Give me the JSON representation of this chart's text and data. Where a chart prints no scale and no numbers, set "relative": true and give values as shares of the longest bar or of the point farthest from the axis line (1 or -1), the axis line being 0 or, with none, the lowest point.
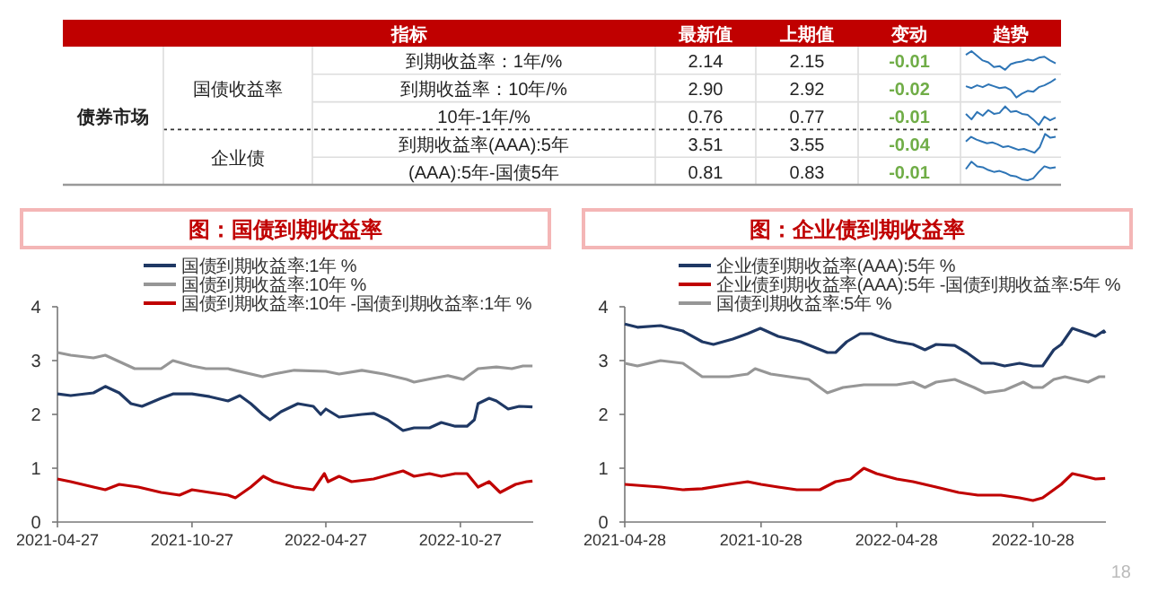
{
  "chart_data": [
    {
      "type": "other",
      "annotations": [
        "指标",
        "趋势",
        "债券市场",
        "国债收益率",
        "企业债"
      ],
      "categories": [
        "到期收益率：1年/%",
        "到期收益率：10年/%",
        "10年-1年/%",
        "到期收益率(AAA):5年",
        "(AAA):5年-国债5年"
      ],
      "series": [
        {
          "name": "最新值",
          "values": [
            2.14,
            2.9,
            0.76,
            3.51,
            0.81
          ],
          "value_labels": [
            "2.14",
            "2.90",
            "0.76",
            "3.51",
            "0.81"
          ]
        },
        {
          "name": "上期值",
          "values": [
            2.15,
            2.92,
            0.77,
            3.55,
            0.83
          ],
          "value_labels": [
            "2.15",
            "2.92",
            "0.77",
            "3.55",
            "0.83"
          ]
        },
        {
          "name": "变动",
          "values": [
            -0.01,
            -0.02,
            -0.01,
            -0.04,
            -0.01
          ],
          "value_labels": [
            "-0.01",
            "-0.02",
            "-0.01",
            "-0.04",
            "-0.01"
          ]
        }
      ]
    },
    {
      "type": "line",
      "relative": true,
      "categories": [
        null,
        null,
        null,
        null,
        null,
        null,
        null,
        null,
        null,
        null,
        null,
        null,
        null,
        null,
        null,
        null,
        null
      ],
      "series": [
        {
          "color": "#2e75b6",
          "values": [
            0.8,
            1,
            0.75,
            0.5,
            0.4,
            0.15,
            0.2,
            0,
            0.3,
            0.4,
            0.45,
            0.55,
            0.5,
            0.65,
            0.7,
            0.5,
            0.35
          ]
        }
      ]
    },
    {
      "type": "line",
      "relative": true,
      "categories": [
        null,
        null,
        null,
        null,
        null,
        null,
        null,
        null,
        null,
        null,
        null,
        null,
        null,
        null,
        null,
        null,
        null
      ],
      "series": [
        {
          "color": "#2e75b6",
          "values": [
            0.6,
            0.5,
            0.65,
            0.55,
            0.7,
            0.6,
            0.5,
            0.55,
            0.4,
            0,
            0.2,
            0.35,
            0.3,
            0.55,
            0.65,
            0.8,
            1
          ]
        }
      ]
    },
    {
      "type": "line",
      "relative": true,
      "categories": [
        null,
        null,
        null,
        null,
        null,
        null,
        null,
        null,
        null,
        null,
        null,
        null,
        null,
        null,
        null,
        null,
        null
      ],
      "series": [
        {
          "color": "#2e75b6",
          "values": [
            0.6,
            0.3,
            0.7,
            0.5,
            0.8,
            0.6,
            0.65,
            1,
            0.7,
            0.75,
            0.6,
            0.55,
            0.3,
            0,
            0.45,
            0.25,
            0.4
          ]
        }
      ]
    },
    {
      "type": "line",
      "relative": true,
      "categories": [
        null,
        null,
        null,
        null,
        null,
        null,
        null,
        null,
        null,
        null,
        null,
        null,
        null,
        null,
        null,
        null,
        null,
        null
      ],
      "series": [
        {
          "color": "#2e75b6",
          "values": [
            0.6,
            0.85,
            0.7,
            0.6,
            0.5,
            0.55,
            0.45,
            0.3,
            0.35,
            0.25,
            0.15,
            0.2,
            0.1,
            0,
            0.3,
            1,
            0.8,
            0.85
          ]
        }
      ]
    },
    {
      "type": "line",
      "relative": true,
      "categories": [
        null,
        null,
        null,
        null,
        null,
        null,
        null,
        null,
        null,
        null,
        null,
        null,
        null,
        null,
        null,
        null,
        null
      ],
      "series": [
        {
          "color": "#2e75b6",
          "values": [
            0.6,
            1,
            0.75,
            0.7,
            0.55,
            0.45,
            0.5,
            0.4,
            0.25,
            0.2,
            0.05,
            0,
            0.1,
            0.45,
            0.75,
            0.65,
            0.7
          ]
        }
      ]
    },
    {
      "type": "line",
      "title": "图：国债到期收益率",
      "legend": "top",
      "xlim": [
        "2021-04-27",
        "2023-02-03"
      ],
      "xticks": [
        "2021-04-27",
        "2021-10-27",
        "2022-04-27",
        "2022-10-27"
      ],
      "ylim": [
        0,
        4
      ],
      "yticks": [
        0,
        1,
        2,
        3,
        4
      ],
      "series": [
        {
          "name": "国债到期收益率:1年 %",
          "color": "#1f3864",
          "x": [
            "2021-04-27",
            "2021-05-15",
            "2021-06-15",
            "2021-07-01",
            "2021-07-20",
            "2021-08-05",
            "2021-08-20",
            "2021-09-15",
            "2021-10-01",
            "2021-10-27",
            "2021-11-20",
            "2021-12-15",
            "2021-12-31",
            "2022-01-15",
            "2022-01-31",
            "2022-02-10",
            "2022-02-25",
            "2022-03-20",
            "2022-04-10",
            "2022-04-20",
            "2022-04-27",
            "2022-05-15",
            "2022-06-15",
            "2022-07-01",
            "2022-07-20",
            "2022-08-10",
            "2022-08-25",
            "2022-09-15",
            "2022-10-01",
            "2022-10-20",
            "2022-11-05",
            "2022-11-15",
            "2022-11-20",
            "2022-12-05",
            "2022-12-15",
            "2022-12-31",
            "2023-01-15",
            "2023-02-02"
          ],
          "values": [
            2.38,
            2.35,
            2.4,
            2.52,
            2.4,
            2.2,
            2.15,
            2.3,
            2.38,
            2.38,
            2.33,
            2.25,
            2.35,
            2.2,
            2.0,
            1.9,
            2.05,
            2.2,
            2.15,
            2.0,
            2.1,
            1.95,
            2.0,
            2.02,
            1.9,
            1.7,
            1.75,
            1.75,
            1.85,
            1.78,
            1.78,
            1.9,
            2.2,
            2.3,
            2.25,
            2.1,
            2.15,
            2.14
          ]
        },
        {
          "name": "国债到期收益率:10年 %",
          "color": "#969696",
          "x": [
            "2021-04-27",
            "2021-05-15",
            "2021-06-15",
            "2021-07-01",
            "2021-08-10",
            "2021-09-15",
            "2021-10-01",
            "2021-10-27",
            "2021-11-15",
            "2021-12-15",
            "2022-01-31",
            "2022-02-15",
            "2022-03-15",
            "2022-04-27",
            "2022-05-15",
            "2022-06-15",
            "2022-07-15",
            "2022-08-15",
            "2022-08-25",
            "2022-09-20",
            "2022-10-10",
            "2022-10-31",
            "2022-11-20",
            "2022-12-15",
            "2023-01-05",
            "2023-01-20",
            "2023-02-02"
          ],
          "values": [
            3.15,
            3.1,
            3.05,
            3.1,
            2.85,
            2.85,
            3.0,
            2.9,
            2.85,
            2.85,
            2.7,
            2.75,
            2.82,
            2.8,
            2.75,
            2.82,
            2.75,
            2.65,
            2.6,
            2.67,
            2.72,
            2.65,
            2.85,
            2.88,
            2.85,
            2.9,
            2.9
          ]
        },
        {
          "name": "国债到期收益率:10年 -国债到期收益率:1年 %",
          "color": "#c00000",
          "x": [
            "2021-04-27",
            "2021-05-15",
            "2021-06-15",
            "2021-07-01",
            "2021-07-20",
            "2021-08-15",
            "2021-09-15",
            "2021-10-10",
            "2021-10-27",
            "2021-11-20",
            "2021-12-15",
            "2021-12-25",
            "2022-01-15",
            "2022-02-01",
            "2022-02-15",
            "2022-03-15",
            "2022-04-10",
            "2022-04-25",
            "2022-04-30",
            "2022-05-15",
            "2022-06-01",
            "2022-07-01",
            "2022-08-10",
            "2022-08-25",
            "2022-09-15",
            "2022-10-01",
            "2022-10-20",
            "2022-11-05",
            "2022-11-20",
            "2022-12-05",
            "2022-12-20",
            "2023-01-10",
            "2023-01-25",
            "2023-02-02"
          ],
          "values": [
            0.8,
            0.75,
            0.65,
            0.6,
            0.7,
            0.65,
            0.55,
            0.5,
            0.6,
            0.55,
            0.5,
            0.45,
            0.65,
            0.85,
            0.75,
            0.65,
            0.6,
            0.9,
            0.75,
            0.85,
            0.75,
            0.8,
            0.95,
            0.85,
            0.9,
            0.85,
            0.9,
            0.9,
            0.65,
            0.75,
            0.55,
            0.7,
            0.75,
            0.76
          ]
        }
      ]
    },
    {
      "type": "line",
      "title": "图：企业债到期收益率",
      "legend": "top",
      "xlim": [
        "2021-04-28",
        "2023-02-03"
      ],
      "xticks": [
        "2021-04-28",
        "2021-10-28",
        "2022-04-28",
        "2022-10-28"
      ],
      "ylim": [
        0,
        4
      ],
      "yticks": [
        0,
        1,
        2,
        3,
        4
      ],
      "annotations": [
        "18"
      ],
      "series": [
        {
          "name": "企业债到期收益率(AAA):5年 %",
          "color": "#1f3864",
          "x": [
            "2021-04-28",
            "2021-05-15",
            "2021-06-15",
            "2021-07-15",
            "2021-08-10",
            "2021-08-25",
            "2021-09-20",
            "2021-10-10",
            "2021-10-27",
            "2021-11-20",
            "2021-12-20",
            "2022-01-25",
            "2022-02-05",
            "2022-02-20",
            "2022-03-10",
            "2022-03-25",
            "2022-04-15",
            "2022-04-28",
            "2022-05-20",
            "2022-06-05",
            "2022-06-20",
            "2022-07-15",
            "2022-07-31",
            "2022-08-20",
            "2022-09-05",
            "2022-09-20",
            "2022-10-10",
            "2022-10-28",
            "2022-11-10",
            "2022-11-25",
            "2022-12-05",
            "2022-12-20",
            "2023-01-10",
            "2023-01-20",
            "2023-01-31",
            "2023-02-02"
          ],
          "values": [
            3.68,
            3.62,
            3.65,
            3.55,
            3.35,
            3.3,
            3.4,
            3.5,
            3.6,
            3.45,
            3.35,
            3.15,
            3.15,
            3.35,
            3.5,
            3.5,
            3.4,
            3.35,
            3.3,
            3.2,
            3.3,
            3.28,
            3.15,
            2.95,
            2.95,
            2.9,
            2.95,
            2.9,
            2.9,
            3.2,
            3.3,
            3.6,
            3.5,
            3.45,
            3.55,
            3.51
          ]
        },
        {
          "name": "企业债到期收益率(AAA):5年 -国债到期收益率:5年 %",
          "color": "#c00000",
          "x": [
            "2021-04-28",
            "2021-06-15",
            "2021-07-15",
            "2021-08-10",
            "2021-09-15",
            "2021-10-10",
            "2021-10-28",
            "2021-11-20",
            "2021-12-15",
            "2022-01-15",
            "2022-02-05",
            "2022-02-25",
            "2022-03-15",
            "2022-04-01",
            "2022-04-28",
            "2022-05-20",
            "2022-06-20",
            "2022-07-20",
            "2022-08-15",
            "2022-09-15",
            "2022-10-10",
            "2022-10-28",
            "2022-11-10",
            "2022-11-25",
            "2022-12-05",
            "2022-12-20",
            "2023-01-05",
            "2023-01-20",
            "2023-02-02"
          ],
          "values": [
            0.7,
            0.65,
            0.6,
            0.62,
            0.7,
            0.75,
            0.7,
            0.65,
            0.6,
            0.6,
            0.75,
            0.8,
            1.0,
            0.9,
            0.8,
            0.75,
            0.65,
            0.55,
            0.5,
            0.5,
            0.45,
            0.4,
            0.45,
            0.6,
            0.7,
            0.9,
            0.85,
            0.8,
            0.81
          ]
        },
        {
          "name": "国债到期收益率:5年 %",
          "color": "#969696",
          "x": [
            "2021-04-28",
            "2021-05-15",
            "2021-06-15",
            "2021-07-15",
            "2021-08-10",
            "2021-09-15",
            "2021-10-10",
            "2021-10-20",
            "2021-11-10",
            "2021-12-05",
            "2021-12-31",
            "2022-01-25",
            "2022-02-15",
            "2022-03-15",
            "2022-04-28",
            "2022-05-20",
            "2022-06-05",
            "2022-06-20",
            "2022-07-15",
            "2022-08-10",
            "2022-08-25",
            "2022-09-20",
            "2022-10-15",
            "2022-10-28",
            "2022-11-10",
            "2022-11-25",
            "2022-12-10",
            "2022-12-25",
            "2023-01-10",
            "2023-01-25",
            "2023-02-02"
          ],
          "values": [
            2.95,
            2.9,
            3.0,
            2.95,
            2.7,
            2.7,
            2.75,
            2.85,
            2.75,
            2.7,
            2.65,
            2.4,
            2.5,
            2.55,
            2.55,
            2.6,
            2.5,
            2.6,
            2.65,
            2.5,
            2.4,
            2.45,
            2.6,
            2.5,
            2.5,
            2.65,
            2.7,
            2.65,
            2.6,
            2.7,
            2.7
          ]
        }
      ]
    }
  ]
}
